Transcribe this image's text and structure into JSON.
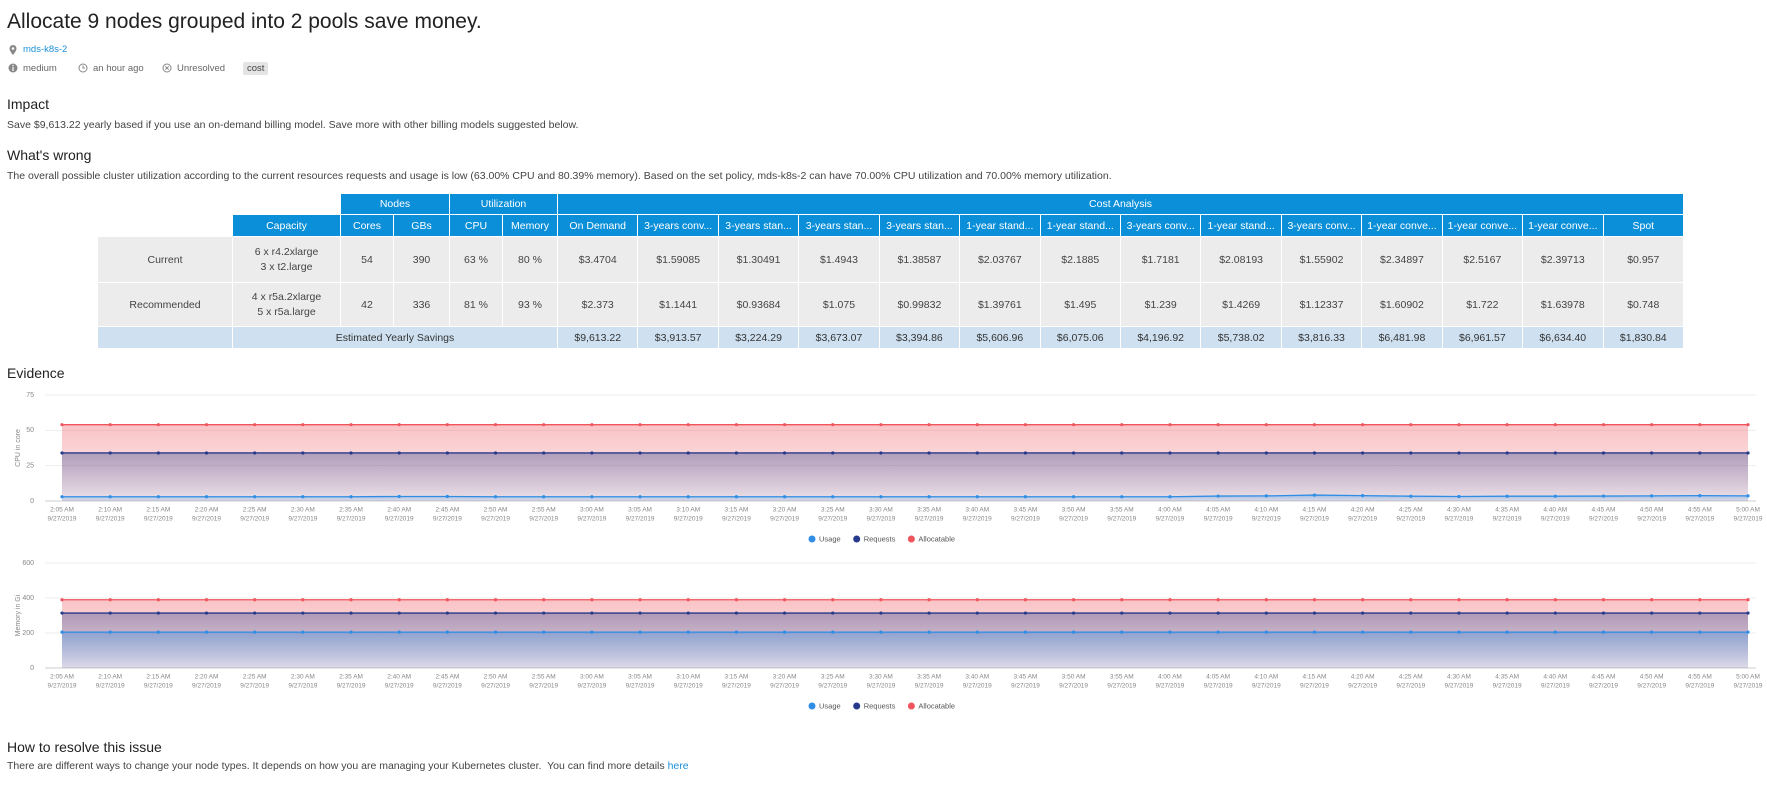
{
  "header": {
    "title": "Allocate 9 nodes grouped into 2 pools save money.",
    "cluster": "mds-k8s-2",
    "severity": "medium",
    "time": "an hour ago",
    "status": "Unresolved",
    "tag": "cost"
  },
  "impact": {
    "heading": "Impact",
    "text": "Save $9,613.22 yearly based if you use an on-demand billing model. Save more with other billing models suggested below."
  },
  "wrong": {
    "heading": "What's wrong",
    "text": "The overall possible cluster utilization according to the current resources requests and usage is low (63.00% CPU and 80.39% memory). Based on the set policy, mds-k8s-2 can have 70.00% CPU utilization and 70.00% memory utilization."
  },
  "table": {
    "groups": [
      "Nodes",
      "Utilization",
      "Cost Analysis"
    ],
    "columns": [
      "Capacity",
      "Cores",
      "GBs",
      "CPU",
      "Memory",
      "On Demand",
      "3-years conv...",
      "3-years stan...",
      "3-years stan...",
      "3-years stan...",
      "1-year stand...",
      "1-year stand...",
      "3-years conv...",
      "1-year stand...",
      "3-years conv...",
      "1-year conve...",
      "1-year conve...",
      "1-year conve...",
      "Spot"
    ],
    "rows": [
      {
        "label": "Current",
        "capacity": [
          "6 x r4.2xlarge",
          "3 x t2.large"
        ],
        "cells": [
          "54",
          "390",
          "63 %",
          "80 %",
          "$3.4704",
          "$1.59085",
          "$1.30491",
          "$1.4943",
          "$1.38587",
          "$2.03767",
          "$2.1885",
          "$1.7181",
          "$2.08193",
          "$1.55902",
          "$2.34897",
          "$2.5167",
          "$2.39713",
          "$0.957"
        ]
      },
      {
        "label": "Recommended",
        "capacity": [
          "4 x r5a.2xlarge",
          "5 x r5a.large"
        ],
        "cells": [
          "42",
          "336",
          "81 %",
          "93 %",
          "$2.373",
          "$1.1441",
          "$0.93684",
          "$1.075",
          "$0.99832",
          "$1.39761",
          "$1.495",
          "$1.239",
          "$1.4269",
          "$1.12337",
          "$1.60902",
          "$1.722",
          "$1.63978",
          "$0.748"
        ]
      }
    ],
    "savings": {
      "label": "Estimated Yearly Savings",
      "values": [
        "$9,613.22",
        "$3,913.57",
        "$3,224.29",
        "$3,673.07",
        "$3,394.86",
        "$5,606.96",
        "$6,075.06",
        "$4,196.92",
        "$5,738.02",
        "$3,816.33",
        "$6,481.98",
        "$6,961.57",
        "$6,634.40",
        "$1,830.84"
      ]
    }
  },
  "evidence": {
    "heading": "Evidence"
  },
  "chart_data": [
    {
      "type": "line",
      "y_label": "CPU in core",
      "ylim": [
        0,
        75
      ],
      "yticks": [
        0,
        25,
        50,
        75
      ],
      "grid": true,
      "categories": [
        {
          "time": "2:05 AM",
          "date": "9/27/2019"
        },
        {
          "time": "2:10 AM",
          "date": "9/27/2019"
        },
        {
          "time": "2:15 AM",
          "date": "9/27/2019"
        },
        {
          "time": "2:20 AM",
          "date": "9/27/2019"
        },
        {
          "time": "2:25 AM",
          "date": "9/27/2019"
        },
        {
          "time": "2:30 AM",
          "date": "9/27/2019"
        },
        {
          "time": "2:35 AM",
          "date": "9/27/2019"
        },
        {
          "time": "2:40 AM",
          "date": "9/27/2019"
        },
        {
          "time": "2:45 AM",
          "date": "9/27/2019"
        },
        {
          "time": "2:50 AM",
          "date": "9/27/2019"
        },
        {
          "time": "2:55 AM",
          "date": "9/27/2019"
        },
        {
          "time": "3:00 AM",
          "date": "9/27/2019"
        },
        {
          "time": "3:05 AM",
          "date": "9/27/2019"
        },
        {
          "time": "3:10 AM",
          "date": "9/27/2019"
        },
        {
          "time": "3:15 AM",
          "date": "9/27/2019"
        },
        {
          "time": "3:20 AM",
          "date": "9/27/2019"
        },
        {
          "time": "3:25 AM",
          "date": "9/27/2019"
        },
        {
          "time": "3:30 AM",
          "date": "9/27/2019"
        },
        {
          "time": "3:35 AM",
          "date": "9/27/2019"
        },
        {
          "time": "3:40 AM",
          "date": "9/27/2019"
        },
        {
          "time": "3:45 AM",
          "date": "9/27/2019"
        },
        {
          "time": "3:50 AM",
          "date": "9/27/2019"
        },
        {
          "time": "3:55 AM",
          "date": "9/27/2019"
        },
        {
          "time": "4:00 AM",
          "date": "9/27/2019"
        },
        {
          "time": "4:05 AM",
          "date": "9/27/2019"
        },
        {
          "time": "4:10 AM",
          "date": "9/27/2019"
        },
        {
          "time": "4:15 AM",
          "date": "9/27/2019"
        },
        {
          "time": "4:20 AM",
          "date": "9/27/2019"
        },
        {
          "time": "4:25 AM",
          "date": "9/27/2019"
        },
        {
          "time": "4:30 AM",
          "date": "9/27/2019"
        },
        {
          "time": "4:35 AM",
          "date": "9/27/2019"
        },
        {
          "time": "4:40 AM",
          "date": "9/27/2019"
        },
        {
          "time": "4:45 AM",
          "date": "9/27/2019"
        },
        {
          "time": "4:50 AM",
          "date": "9/27/2019"
        },
        {
          "time": "4:55 AM",
          "date": "9/27/2019"
        },
        {
          "time": "5:00 AM",
          "date": "9/27/2019"
        }
      ],
      "series": [
        {
          "name": "Usage",
          "color": "#2f8de4",
          "values": [
            3,
            3,
            3,
            3,
            3,
            3,
            3,
            3.2,
            3.2,
            3,
            3,
            3,
            3,
            3,
            3,
            3,
            3,
            3,
            3,
            3,
            3,
            3,
            3,
            3,
            3.5,
            3.6,
            4.2,
            3.8,
            3.4,
            3.2,
            3.4,
            3.4,
            3.5,
            3.6,
            3.8,
            3.6
          ]
        },
        {
          "name": "Requests",
          "color": "#26398a",
          "values": [
            34,
            34,
            34,
            34,
            34,
            34,
            34,
            34,
            34,
            34,
            34,
            34,
            34,
            34,
            34,
            34,
            34,
            34,
            34,
            34,
            34,
            34,
            34,
            34,
            34,
            34,
            34,
            34,
            34,
            34,
            34,
            34,
            34,
            34,
            34,
            34
          ]
        },
        {
          "name": "Allocatable",
          "color": "#f0545c",
          "values": [
            54,
            54,
            54,
            54,
            54,
            54,
            54,
            54,
            54,
            54,
            54,
            54,
            54,
            54,
            54,
            54,
            54,
            54,
            54,
            54,
            54,
            54,
            54,
            54,
            54,
            54,
            54,
            54,
            54,
            54,
            54,
            54,
            54,
            54,
            54,
            54
          ]
        }
      ]
    },
    {
      "type": "line",
      "y_label": "Memory in Gi",
      "ylim": [
        0,
        600
      ],
      "yticks": [
        0,
        200,
        400,
        600
      ],
      "grid": true,
      "categories": [
        {
          "time": "2:05 AM",
          "date": "9/27/2019"
        },
        {
          "time": "2:10 AM",
          "date": "9/27/2019"
        },
        {
          "time": "2:15 AM",
          "date": "9/27/2019"
        },
        {
          "time": "2:20 AM",
          "date": "9/27/2019"
        },
        {
          "time": "2:25 AM",
          "date": "9/27/2019"
        },
        {
          "time": "2:30 AM",
          "date": "9/27/2019"
        },
        {
          "time": "2:35 AM",
          "date": "9/27/2019"
        },
        {
          "time": "2:40 AM",
          "date": "9/27/2019"
        },
        {
          "time": "2:45 AM",
          "date": "9/27/2019"
        },
        {
          "time": "2:50 AM",
          "date": "9/27/2019"
        },
        {
          "time": "2:55 AM",
          "date": "9/27/2019"
        },
        {
          "time": "3:00 AM",
          "date": "9/27/2019"
        },
        {
          "time": "3:05 AM",
          "date": "9/27/2019"
        },
        {
          "time": "3:10 AM",
          "date": "9/27/2019"
        },
        {
          "time": "3:15 AM",
          "date": "9/27/2019"
        },
        {
          "time": "3:20 AM",
          "date": "9/27/2019"
        },
        {
          "time": "3:25 AM",
          "date": "9/27/2019"
        },
        {
          "time": "3:30 AM",
          "date": "9/27/2019"
        },
        {
          "time": "3:35 AM",
          "date": "9/27/2019"
        },
        {
          "time": "3:40 AM",
          "date": "9/27/2019"
        },
        {
          "time": "3:45 AM",
          "date": "9/27/2019"
        },
        {
          "time": "3:50 AM",
          "date": "9/27/2019"
        },
        {
          "time": "3:55 AM",
          "date": "9/27/2019"
        },
        {
          "time": "4:00 AM",
          "date": "9/27/2019"
        },
        {
          "time": "4:05 AM",
          "date": "9/27/2019"
        },
        {
          "time": "4:10 AM",
          "date": "9/27/2019"
        },
        {
          "time": "4:15 AM",
          "date": "9/27/2019"
        },
        {
          "time": "4:20 AM",
          "date": "9/27/2019"
        },
        {
          "time": "4:25 AM",
          "date": "9/27/2019"
        },
        {
          "time": "4:30 AM",
          "date": "9/27/2019"
        },
        {
          "time": "4:35 AM",
          "date": "9/27/2019"
        },
        {
          "time": "4:40 AM",
          "date": "9/27/2019"
        },
        {
          "time": "4:45 AM",
          "date": "9/27/2019"
        },
        {
          "time": "4:50 AM",
          "date": "9/27/2019"
        },
        {
          "time": "4:55 AM",
          "date": "9/27/2019"
        },
        {
          "time": "5:00 AM",
          "date": "9/27/2019"
        }
      ],
      "series": [
        {
          "name": "Usage",
          "color": "#2f8de4",
          "values": [
            205,
            205,
            205,
            205,
            205,
            205,
            205,
            205,
            205,
            205,
            205,
            205,
            205,
            205,
            205,
            205,
            205,
            205,
            205,
            205,
            205,
            205,
            205,
            205,
            205,
            205,
            205,
            205,
            205,
            205,
            205,
            205,
            205,
            205,
            205,
            205
          ]
        },
        {
          "name": "Requests",
          "color": "#26398a",
          "values": [
            314,
            314,
            314,
            314,
            314,
            314,
            314,
            314,
            314,
            314,
            314,
            314,
            314,
            314,
            314,
            314,
            314,
            314,
            314,
            314,
            314,
            314,
            314,
            314,
            314,
            314,
            314,
            314,
            314,
            314,
            314,
            314,
            314,
            314,
            314,
            314
          ]
        },
        {
          "name": "Allocatable",
          "color": "#f0545c",
          "values": [
            390,
            390,
            390,
            390,
            390,
            390,
            390,
            390,
            390,
            390,
            390,
            390,
            390,
            390,
            390,
            390,
            390,
            390,
            390,
            390,
            390,
            390,
            390,
            390,
            390,
            390,
            390,
            390,
            390,
            390,
            390,
            390,
            390,
            390,
            390,
            390
          ]
        }
      ]
    }
  ],
  "resolve": {
    "heading": "How to resolve this issue",
    "text": "There are different ways to change your node types. It depends on how you are managing your Kubernetes cluster.  You can find more details ",
    "link": "here"
  }
}
